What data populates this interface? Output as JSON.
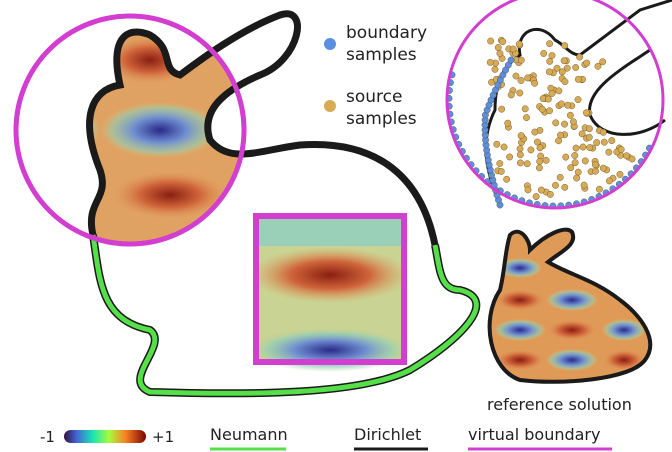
{
  "samples_legend": {
    "boundary": "boundary samples",
    "source": "source samples"
  },
  "reference_label": "reference solution",
  "colorbar": {
    "min_label": "-1",
    "max_label": "+1"
  },
  "boundary_legend": {
    "neumann": "Neumann",
    "dirichlet": "Dirichlet",
    "virtual": "virtual boundary"
  }
}
